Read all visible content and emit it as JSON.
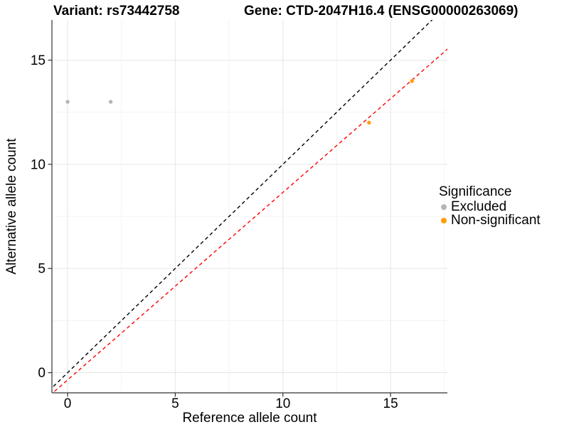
{
  "titles": {
    "left": "Variant: rs73442758",
    "right": "Gene: CTD-2047H16.4 (ENSG00000263069)"
  },
  "chart_data": {
    "type": "scatter",
    "title": "Variant: rs73442758 / Gene: CTD-2047H16.4 (ENSG00000263069)",
    "xlabel": "Reference allele count",
    "ylabel": "Alternative allele count",
    "xlim": [
      -0.73,
      17.64
    ],
    "ylim": [
      -0.97,
      16.93
    ],
    "xticks": [
      0,
      5,
      10,
      15
    ],
    "yticks": [
      0,
      5,
      10,
      15
    ],
    "xminor": [
      2.5,
      7.5,
      12.5,
      17.5
    ],
    "yminor": [
      2.5,
      7.5,
      12.5
    ],
    "grid": true,
    "series": [
      {
        "name": "Excluded",
        "color": "#B5B5B5",
        "points": [
          [
            0,
            13
          ],
          [
            2,
            13
          ]
        ]
      },
      {
        "name": "Non-significant",
        "color": "#FF9E00",
        "points": [
          [
            14,
            12
          ],
          [
            16,
            14
          ]
        ]
      }
    ],
    "lines": [
      {
        "name": "identity-line",
        "color": "#000000",
        "slope": 1.0,
        "intercept": 0,
        "style": "dashed"
      },
      {
        "name": "fitted-ratio-line",
        "color": "#FF0000",
        "slope": 0.9,
        "intercept": -0.35,
        "style": "dashed"
      }
    ],
    "legend": {
      "title": "Significance",
      "position": "right"
    },
    "colors": {
      "axis_line": "#333333",
      "grid_major": "#E7E7E7",
      "grid_minor": "#F3F3F3",
      "tick": "#333333"
    }
  }
}
